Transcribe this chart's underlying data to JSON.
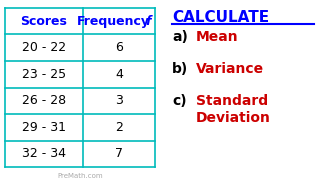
{
  "table_scores": [
    "Scores",
    "20 - 22",
    "23 - 25",
    "26 - 28",
    "29 - 31",
    "32 - 34"
  ],
  "table_freq_label": "Frequency",
  "table_freq_f": "f",
  "table_frequencies": [
    6,
    4,
    3,
    2,
    7
  ],
  "bg_color": "#ffffff",
  "table_border_color": "#00bbbb",
  "header_text_color": "#0000ff",
  "data_text_color": "#000000",
  "calc_title": "CALCULATE",
  "calc_title_color": "#0000ff",
  "calc_items": [
    "a)",
    "b)",
    "c)"
  ],
  "calc_labels": [
    "Mean",
    "Variance",
    "Standard\nDeviation"
  ],
  "calc_label_color": "#cc0000",
  "calc_item_color": "#000000",
  "watermark": "PreMath.com",
  "watermark_color": "#aaaaaa"
}
